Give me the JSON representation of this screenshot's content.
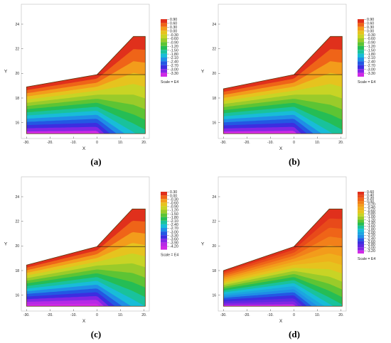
{
  "chart_data": [
    {
      "type": "contour",
      "panel_label": "(a)",
      "xlabel": "X",
      "ylabel": "Y",
      "x_ticks": [
        "-30.",
        "-20.",
        "-10.",
        "0",
        "10.",
        "20."
      ],
      "y_ticks": [
        "16",
        "18",
        "20",
        "22",
        "24"
      ],
      "xlim": [
        -31,
        21
      ],
      "ylim": [
        15,
        25.5
      ],
      "geometry": {
        "left_crest_y": 18.9,
        "toe_x": 0,
        "toe_y": 19.9,
        "top_start_x": 15.5,
        "top_y": 23.0,
        "right_x": 20.5,
        "bottom_y": 15.1
      },
      "legend": {
        "levels": [
          "0.90",
          "0.60",
          "0.30",
          "0.00",
          "-0.30",
          "-0.60",
          "-0.90",
          "-1.20",
          "-1.50",
          "-1.80",
          "-2.10",
          "-2.40",
          "-2.70",
          "-3.00",
          "-3.30"
        ],
        "scale": "Scale = E4"
      },
      "colors": [
        "#e0301c",
        "#ef6418",
        "#f39c1b",
        "#e6c31e",
        "#c8d425",
        "#9acb2a",
        "#5dc434",
        "#25bd55",
        "#19c29c",
        "#18bcd8",
        "#1f8ee6",
        "#2358e3",
        "#3c2ee0",
        "#8226e4",
        "#d02ae5"
      ]
    },
    {
      "type": "contour",
      "panel_label": "(b)",
      "xlabel": "X",
      "ylabel": "Y",
      "x_ticks": [
        "-30.",
        "-20.",
        "-10.",
        "0",
        "10.",
        "20."
      ],
      "y_ticks": [
        "16",
        "18",
        "20",
        "22",
        "24"
      ],
      "xlim": [
        -31,
        21
      ],
      "ylim": [
        15,
        25.5
      ],
      "geometry": {
        "left_crest_y": 18.75,
        "toe_x": 0,
        "toe_y": 19.9,
        "top_start_x": 15.5,
        "top_y": 23.0,
        "right_x": 20.5,
        "bottom_y": 15.1
      },
      "legend": {
        "levels": [
          "0.90",
          "0.60",
          "0.30",
          "0.00",
          "-0.30",
          "-0.60",
          "-0.90",
          "-1.20",
          "-1.50",
          "-1.80",
          "-2.10",
          "-2.40",
          "-2.70",
          "-3.00",
          "-3.30"
        ],
        "scale": "Scale = E4"
      },
      "colors": [
        "#e0301c",
        "#ef6418",
        "#f39c1b",
        "#e6c31e",
        "#c8d425",
        "#9acb2a",
        "#5dc434",
        "#25bd55",
        "#19c29c",
        "#18bcd8",
        "#1f8ee6",
        "#2358e3",
        "#3c2ee0",
        "#8226e4",
        "#d02ae5"
      ]
    },
    {
      "type": "contour",
      "panel_label": "(c)",
      "xlabel": "X",
      "ylabel": "Y",
      "x_ticks": [
        "-30.",
        "-20.",
        "-10.",
        "0",
        "10.",
        "20."
      ],
      "y_ticks": [
        "16",
        "18",
        "20",
        "22",
        "24"
      ],
      "xlim": [
        -31,
        21
      ],
      "ylim": [
        15,
        25.5
      ],
      "geometry": {
        "left_crest_y": 18.45,
        "toe_x": 0,
        "toe_y": 19.95,
        "top_start_x": 15.0,
        "top_y": 23.0,
        "right_x": 20.5,
        "bottom_y": 15.1
      },
      "legend": {
        "levels": [
          "0.30",
          "0.00",
          "-0.30",
          "-0.60",
          "-0.90",
          "-1.20",
          "-1.50",
          "-1.80",
          "-2.10",
          "-2.40",
          "-2.70",
          "-3.00",
          "-3.30",
          "-3.60",
          "-3.90",
          "-4.20"
        ],
        "scale": "Scale = E4"
      },
      "colors": [
        "#e0301c",
        "#ef6418",
        "#f39c1b",
        "#e6c31e",
        "#c8d425",
        "#9acb2a",
        "#5dc434",
        "#25bd55",
        "#19c29c",
        "#18bcd8",
        "#1f8ee6",
        "#2358e3",
        "#3c2ee0",
        "#8226e4",
        "#b62ae5",
        "#d02ae5"
      ]
    },
    {
      "type": "contour",
      "panel_label": "(d)",
      "xlabel": "X",
      "ylabel": "Y",
      "x_ticks": [
        "-30.",
        "-20.",
        "-10.",
        "0",
        "10.",
        "20."
      ],
      "y_ticks": [
        "16",
        "18",
        "20",
        "22",
        "24"
      ],
      "xlim": [
        -31,
        21
      ],
      "ylim": [
        15,
        25.5
      ],
      "geometry": {
        "left_crest_y": 18.0,
        "toe_x": 0,
        "toe_y": 19.95,
        "top_start_x": 15.0,
        "top_y": 23.0,
        "right_x": 20.5,
        "bottom_y": 15.1
      },
      "legend": {
        "levels": [
          "0.60",
          "0.40",
          "0.20",
          "0.00",
          "-0.20",
          "-0.40",
          "-0.60",
          "-0.80",
          "-1.00",
          "-1.20",
          "-1.40",
          "-1.60",
          "-1.80",
          "-2.00",
          "-2.20",
          "-2.40",
          "-2.60",
          "-2.80",
          "-3.00",
          "-3.20"
        ],
        "scale": "Scale = E4"
      },
      "colors": [
        "#e0301c",
        "#e84a1a",
        "#ef6418",
        "#f2801a",
        "#f39c1b",
        "#eeb11c",
        "#e6c31e",
        "#c8d425",
        "#9acb2a",
        "#5dc434",
        "#25bd55",
        "#19c29c",
        "#18bcd8",
        "#1ca6e0",
        "#1f8ee6",
        "#2358e3",
        "#3c2ee0",
        "#5f28e2",
        "#8226e4",
        "#d02ae5"
      ]
    }
  ]
}
